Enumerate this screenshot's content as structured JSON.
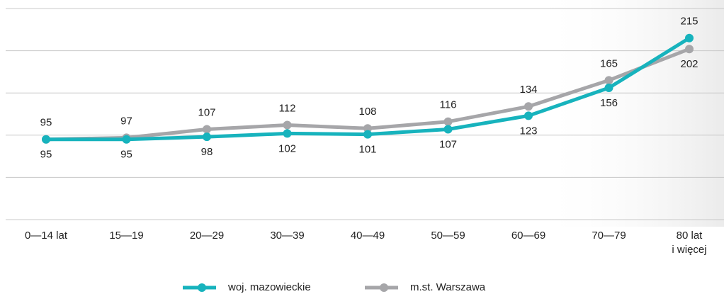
{
  "chart_data": {
    "type": "line",
    "categories": [
      "0—14 lat",
      "15—19",
      "20—29",
      "30—39",
      "40—49",
      "50—59",
      "60—69",
      "70—79",
      "80 lat\ni więcej"
    ],
    "series": [
      {
        "name": "woj. mazowieckie",
        "color": "#17b3bd",
        "values": [
          95,
          95,
          98,
          102,
          101,
          107,
          123,
          156,
          215
        ]
      },
      {
        "name": "m.st. Warszawa",
        "color": "#a6a6a9",
        "values": [
          95,
          97,
          107,
          112,
          108,
          116,
          134,
          165,
          202
        ]
      }
    ],
    "ylim": [
      0,
      250
    ],
    "yticks": [
      0,
      50,
      100,
      150,
      200,
      250
    ],
    "grid": true
  }
}
